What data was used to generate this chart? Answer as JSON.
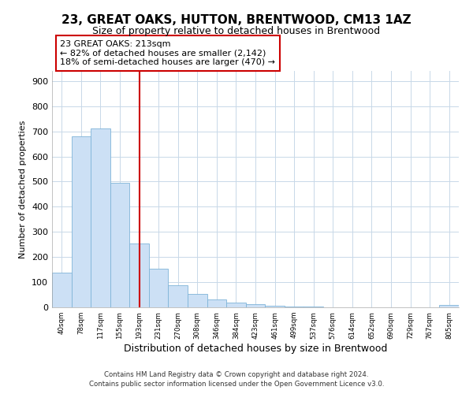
{
  "title": "23, GREAT OAKS, HUTTON, BRENTWOOD, CM13 1AZ",
  "subtitle": "Size of property relative to detached houses in Brentwood",
  "xlabel": "Distribution of detached houses by size in Brentwood",
  "ylabel": "Number of detached properties",
  "bin_labels": [
    "40sqm",
    "78sqm",
    "117sqm",
    "155sqm",
    "193sqm",
    "231sqm",
    "270sqm",
    "308sqm",
    "346sqm",
    "384sqm",
    "423sqm",
    "461sqm",
    "499sqm",
    "537sqm",
    "576sqm",
    "614sqm",
    "652sqm",
    "690sqm",
    "729sqm",
    "767sqm",
    "805sqm"
  ],
  "bar_values": [
    138,
    680,
    710,
    495,
    255,
    155,
    88,
    52,
    30,
    20,
    12,
    5,
    3,
    2,
    1,
    0,
    0,
    0,
    0,
    0,
    8
  ],
  "bar_color": "#cce0f5",
  "bar_edge_color": "#7fb4d8",
  "annotation_line1": "23 GREAT OAKS: 213sqm",
  "annotation_line2": "← 82% of detached houses are smaller (2,142)",
  "annotation_line3": "18% of semi-detached houses are larger (470) →",
  "annotation_box_color": "#ffffff",
  "annotation_box_edge": "#cc0000",
  "line_color": "#cc0000",
  "ylim": [
    0,
    940
  ],
  "yticks": [
    0,
    100,
    200,
    300,
    400,
    500,
    600,
    700,
    800,
    900
  ],
  "footer1": "Contains HM Land Registry data © Crown copyright and database right 2024.",
  "footer2": "Contains public sector information licensed under the Open Government Licence v3.0.",
  "bg_color": "#ffffff",
  "grid_color": "#c8d8e8",
  "title_fontsize": 11,
  "subtitle_fontsize": 9
}
